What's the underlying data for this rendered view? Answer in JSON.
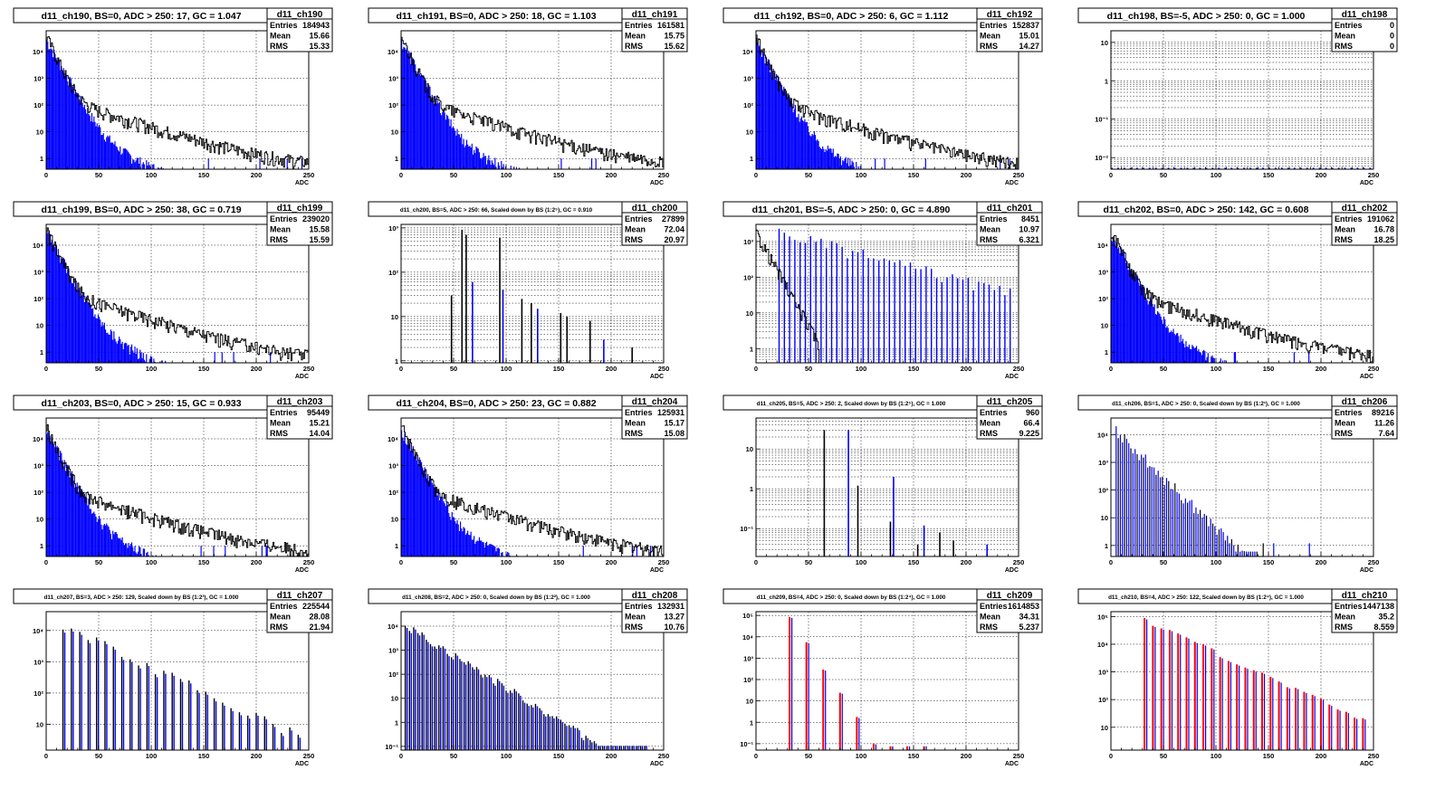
{
  "colors": {
    "blue": "#0000ff",
    "black": "#000000",
    "red": "#ff0000"
  },
  "chart_data": [
    {
      "type": "bar",
      "name": "d11_ch190",
      "title": "d11_ch190, BS=0, ADC > 250: 17, GC = 1.047",
      "stats": {
        "entries": "184943",
        "mean": "15.66",
        "rms": "15.33"
      },
      "xlabel": "ADC",
      "xlim": [
        0,
        250
      ],
      "ylim": [
        0.4,
        60000
      ],
      "log": true,
      "yticks": [
        {
          "v": 1,
          "label": "1"
        },
        {
          "v": 10,
          "label": "10"
        },
        {
          "v": 100,
          "label": "10²"
        },
        {
          "v": 1000,
          "label": "10³"
        },
        {
          "v": 10000,
          "label": "10⁴"
        }
      ],
      "series": [
        {
          "name": "blue",
          "color": "#0000ff",
          "kind": "fill",
          "profile": "smooth",
          "peak": 30000,
          "end": 150
        },
        {
          "name": "black",
          "color": "#000000",
          "kind": "line",
          "profile": "smooth",
          "peak": 40000,
          "end": 250
        }
      ]
    },
    {
      "type": "bar",
      "name": "d11_ch191",
      "title": "d11_ch191, BS=0, ADC > 250: 18, GC = 1.103",
      "stats": {
        "entries": "161581",
        "mean": "15.75",
        "rms": "15.62"
      },
      "xlabel": "ADC",
      "xlim": [
        0,
        250
      ],
      "ylim": [
        0.4,
        60000
      ],
      "log": true,
      "yticks": [
        {
          "v": 1,
          "label": "1"
        },
        {
          "v": 10,
          "label": "10"
        },
        {
          "v": 100,
          "label": "10²"
        },
        {
          "v": 1000,
          "label": "10³"
        },
        {
          "v": 10000,
          "label": "10⁴"
        }
      ],
      "series": [
        {
          "name": "blue",
          "color": "#0000ff",
          "kind": "fill",
          "profile": "smooth",
          "peak": 28000,
          "end": 150
        },
        {
          "name": "black",
          "color": "#000000",
          "kind": "line",
          "profile": "smooth",
          "peak": 38000,
          "end": 250
        }
      ]
    },
    {
      "type": "bar",
      "name": "d11_ch192",
      "title": "d11_ch192, BS=0, ADC > 250: 6, GC = 1.112",
      "stats": {
        "entries": "152837",
        "mean": "15.01",
        "rms": "14.27"
      },
      "xlabel": "ADC",
      "xlim": [
        0,
        250
      ],
      "ylim": [
        0.4,
        60000
      ],
      "log": true,
      "yticks": [
        {
          "v": 1,
          "label": "1"
        },
        {
          "v": 10,
          "label": "10"
        },
        {
          "v": 100,
          "label": "10²"
        },
        {
          "v": 1000,
          "label": "10³"
        },
        {
          "v": 10000,
          "label": "10⁴"
        }
      ],
      "series": [
        {
          "name": "blue",
          "color": "#0000ff",
          "kind": "fill",
          "profile": "smooth",
          "peak": 26000,
          "end": 100
        },
        {
          "name": "black",
          "color": "#000000",
          "kind": "line",
          "profile": "smooth",
          "peak": 36000,
          "end": 250
        }
      ]
    },
    {
      "type": "bar",
      "name": "d11_ch198",
      "title": "d11_ch198, BS=-5, ADC > 250: 0, GC = 1.000",
      "stats": {
        "entries": "0",
        "mean": "0",
        "rms": "0"
      },
      "xlabel": "ADC",
      "xlim": [
        0,
        250
      ],
      "ylim": [
        0.005,
        20
      ],
      "log": true,
      "yticks": [
        {
          "v": 0.01,
          "label": "10⁻²"
        },
        {
          "v": 0.1,
          "label": "10⁻¹"
        },
        {
          "v": 1,
          "label": "1"
        },
        {
          "v": 10,
          "label": "10"
        }
      ],
      "series": [
        {
          "name": "blue",
          "color": "#0000ff",
          "kind": "baseline"
        }
      ]
    },
    {
      "type": "bar",
      "name": "d11_ch199",
      "title": "d11_ch199, BS=0, ADC > 250: 38, GC = 0.719",
      "stats": {
        "entries": "239020",
        "mean": "15.58",
        "rms": "15.59"
      },
      "xlabel": "ADC",
      "xlim": [
        0,
        250
      ],
      "ylim": [
        0.4,
        60000
      ],
      "log": true,
      "yticks": [
        {
          "v": 1,
          "label": "1"
        },
        {
          "v": 10,
          "label": "10"
        },
        {
          "v": 100,
          "label": "10²"
        },
        {
          "v": 1000,
          "label": "10³"
        },
        {
          "v": 10000,
          "label": "10⁴"
        }
      ],
      "series": [
        {
          "name": "blue",
          "color": "#0000ff",
          "kind": "fill",
          "profile": "smooth",
          "peak": 35000,
          "end": 160
        },
        {
          "name": "black",
          "color": "#000000",
          "kind": "line",
          "profile": "smooth",
          "peak": 45000,
          "end": 250
        }
      ]
    },
    {
      "type": "bar",
      "name": "d11_ch200",
      "title": "d11_ch200, BS=5, ADC > 250: 66, Scaled down by BS (1:2⁵), GC = 0.910",
      "stats": {
        "entries": "27899",
        "mean": "72.04",
        "rms": "20.97"
      },
      "xlabel": "ADC",
      "xlim": [
        0,
        250
      ],
      "ylim": [
        0.9,
        1200
      ],
      "log": true,
      "yticks": [
        {
          "v": 1,
          "label": "1"
        },
        {
          "v": 10,
          "label": "10"
        },
        {
          "v": 100,
          "label": "10²"
        },
        {
          "v": 1000,
          "label": "10³"
        }
      ],
      "series": [
        {
          "name": "spikes",
          "color": "#000000",
          "kind": "spikes",
          "spikes": [
            [
              48,
              30,
              "#000000"
            ],
            [
              58,
              900,
              "#000000"
            ],
            [
              62,
              700,
              "#000000"
            ],
            [
              68,
              60,
              "#0000ff"
            ],
            [
              94,
              600,
              "#000000"
            ],
            [
              97,
              40,
              "#0000ff"
            ],
            [
              115,
              25,
              "#000000"
            ],
            [
              124,
              20,
              "#000000"
            ],
            [
              130,
              15,
              "#0000ff"
            ],
            [
              152,
              12,
              "#000000"
            ],
            [
              158,
              10,
              "#000000"
            ],
            [
              180,
              8,
              "#000000"
            ],
            [
              193,
              3,
              "#0000ff"
            ],
            [
              220,
              2,
              "#000000"
            ]
          ]
        }
      ]
    },
    {
      "type": "bar",
      "name": "d11_ch201",
      "title": "d11_ch201, BS=-5, ADC > 250: 0, GC = 4.890",
      "stats": {
        "entries": "8451",
        "mean": "10.97",
        "rms": "6.321"
      },
      "xlabel": "ADC",
      "xlim": [
        0,
        250
      ],
      "ylim": [
        0.4,
        3000
      ],
      "log": true,
      "yticks": [
        {
          "v": 1,
          "label": "1"
        },
        {
          "v": 10,
          "label": "10"
        },
        {
          "v": 100,
          "label": "10²"
        },
        {
          "v": 1000,
          "label": "10³"
        }
      ],
      "series": [
        {
          "name": "blue",
          "color": "#0000ff",
          "kind": "comb",
          "start": 22,
          "end": 245,
          "step": 5,
          "peak": 1800,
          "decay": 0.018
        },
        {
          "name": "black",
          "color": "#000000",
          "kind": "line",
          "profile": "fast",
          "peak": 1800,
          "end": 60
        }
      ]
    },
    {
      "type": "bar",
      "name": "d11_ch202",
      "title": "d11_ch202, BS=0, ADC > 250: 142, GC = 0.608",
      "stats": {
        "entries": "191062",
        "mean": "16.78",
        "rms": "18.25"
      },
      "xlabel": "ADC",
      "xlim": [
        0,
        250
      ],
      "ylim": [
        0.4,
        60000
      ],
      "log": true,
      "yticks": [
        {
          "v": 1,
          "label": "1"
        },
        {
          "v": 10,
          "label": "10"
        },
        {
          "v": 100,
          "label": "10²"
        },
        {
          "v": 1000,
          "label": "10³"
        },
        {
          "v": 10000,
          "label": "10⁴"
        }
      ],
      "series": [
        {
          "name": "blue",
          "color": "#0000ff",
          "kind": "fill",
          "profile": "smooth",
          "peak": 30000,
          "end": 110
        },
        {
          "name": "black",
          "color": "#000000",
          "kind": "line",
          "profile": "smooth",
          "peak": 42000,
          "end": 250
        }
      ]
    },
    {
      "type": "bar",
      "name": "d11_ch203",
      "title": "d11_ch203, BS=0, ADC > 250: 15, GC = 0.933",
      "stats": {
        "entries": "95449",
        "mean": "15.21",
        "rms": "14.04"
      },
      "xlabel": "ADC",
      "xlim": [
        0,
        250
      ],
      "ylim": [
        0.4,
        60000
      ],
      "log": true,
      "yticks": [
        {
          "v": 1,
          "label": "1"
        },
        {
          "v": 10,
          "label": "10"
        },
        {
          "v": 100,
          "label": "10²"
        },
        {
          "v": 1000,
          "label": "10³"
        },
        {
          "v": 10000,
          "label": "10⁴"
        }
      ],
      "series": [
        {
          "name": "blue",
          "color": "#0000ff",
          "kind": "fill",
          "profile": "smooth",
          "peak": 22000,
          "end": 130
        },
        {
          "name": "black",
          "color": "#000000",
          "kind": "line",
          "profile": "smooth",
          "peak": 30000,
          "end": 250
        }
      ]
    },
    {
      "type": "bar",
      "name": "d11_ch204",
      "title": "d11_ch204, BS=0, ADC > 250: 23, GC = 0.882",
      "stats": {
        "entries": "125931",
        "mean": "15.17",
        "rms": "15.08"
      },
      "xlabel": "ADC",
      "xlim": [
        0,
        250
      ],
      "ylim": [
        0.4,
        60000
      ],
      "log": true,
      "yticks": [
        {
          "v": 1,
          "label": "1"
        },
        {
          "v": 10,
          "label": "10"
        },
        {
          "v": 100,
          "label": "10²"
        },
        {
          "v": 1000,
          "label": "10³"
        },
        {
          "v": 10000,
          "label": "10⁴"
        }
      ],
      "series": [
        {
          "name": "blue",
          "color": "#0000ff",
          "kind": "fill",
          "profile": "smooth",
          "peak": 24000,
          "end": 130
        },
        {
          "name": "black",
          "color": "#000000",
          "kind": "line",
          "profile": "smooth",
          "peak": 32000,
          "end": 250
        }
      ]
    },
    {
      "type": "bar",
      "name": "d11_ch205",
      "title": "d11_ch205, BS=5, ADC > 250: 2, Scaled down by BS (1:2⁵), GC = 1.000",
      "stats": {
        "entries": "960",
        "mean": "66.4",
        "rms": "9.225"
      },
      "xlabel": "ADC",
      "xlim": [
        0,
        250
      ],
      "ylim": [
        0.02,
        60
      ],
      "log": true,
      "yticks": [
        {
          "v": 0.1,
          "label": "10⁻¹"
        },
        {
          "v": 1,
          "label": "1"
        },
        {
          "v": 10,
          "label": "10"
        }
      ],
      "series": [
        {
          "name": "spikes",
          "color": "#000000",
          "kind": "spikes",
          "spikes": [
            [
              65,
              30,
              "#000000"
            ],
            [
              88,
              30,
              "#0000ff"
            ],
            [
              97,
              1.2,
              "#000000"
            ],
            [
              128,
              0.15,
              "#000000"
            ],
            [
              131,
              2,
              "#0000ff"
            ],
            [
              154,
              0.04,
              "#000000"
            ],
            [
              160,
              0.12,
              "#0000ff"
            ],
            [
              175,
              0.08,
              "#000000"
            ],
            [
              188,
              0.05,
              "#000000"
            ],
            [
              220,
              0.04,
              "#0000ff"
            ]
          ]
        }
      ]
    },
    {
      "type": "bar",
      "name": "d11_ch206",
      "title": "d11_ch206, BS=1, ADC > 250: 0, Scaled down by BS (1:2¹), GC = 1.000",
      "stats": {
        "entries": "89216",
        "mean": "11.26",
        "rms": "7.64"
      },
      "xlabel": "ADC",
      "xlim": [
        0,
        250
      ],
      "ylim": [
        0.4,
        40000
      ],
      "log": true,
      "yticks": [
        {
          "v": 1,
          "label": "1"
        },
        {
          "v": 10,
          "label": "10"
        },
        {
          "v": 100,
          "label": "10²"
        },
        {
          "v": 1000,
          "label": "10³"
        },
        {
          "v": 10000,
          "label": "10⁴"
        }
      ],
      "series": [
        {
          "name": "blue",
          "color": "#0000ff",
          "kind": "comb2",
          "start": 5,
          "end": 245,
          "step": 2,
          "peak": 15000,
          "decay": 0.085,
          "cut": 140
        }
      ]
    },
    {
      "type": "bar",
      "name": "d11_ch207",
      "title": "d11_ch207, BS=3, ADC > 250: 129, Scaled down by BS (1:2³), GC = 1.000",
      "stats": {
        "entries": "225544",
        "mean": "28.08",
        "rms": "21.94"
      },
      "xlabel": "ADC",
      "xlim": [
        0,
        250
      ],
      "ylim": [
        1.5,
        40000
      ],
      "log": true,
      "yticks": [
        {
          "v": 10,
          "label": "10"
        },
        {
          "v": 100,
          "label": "10²"
        },
        {
          "v": 1000,
          "label": "10³"
        },
        {
          "v": 10000,
          "label": "10⁴"
        }
      ],
      "series": [
        {
          "name": "comb",
          "color": "#000000",
          "kind": "comb3",
          "start": 16,
          "end": 245,
          "step": 8,
          "peak": 15000,
          "decay": 0.036
        }
      ]
    },
    {
      "type": "bar",
      "name": "d11_ch208",
      "title": "d11_ch208, BS=2, ADC > 250: 0, Scaled down by BS (1:2²), GC = 1.000",
      "stats": {
        "entries": "132931",
        "mean": "13.27",
        "rms": "10.76"
      },
      "xlabel": "ADC",
      "xlim": [
        0,
        250
      ],
      "ylim": [
        0.07,
        40000
      ],
      "log": true,
      "yticks": [
        {
          "v": 0.1,
          "label": "10⁻¹"
        },
        {
          "v": 1,
          "label": "1"
        },
        {
          "v": 10,
          "label": "10"
        },
        {
          "v": 100,
          "label": "10²"
        },
        {
          "v": 1000,
          "label": "10³"
        },
        {
          "v": 10000,
          "label": "10⁴"
        }
      ],
      "series": [
        {
          "name": "comb",
          "color": "#000000",
          "kind": "comb3",
          "start": 4,
          "end": 235,
          "step": 4,
          "peak": 12000,
          "decay": 0.062
        }
      ]
    },
    {
      "type": "bar",
      "name": "d11_ch209",
      "title": "d11_ch209, BS=4, ADC > 250: 0, Scaled down by BS (1:2⁴), GC = 1.000",
      "stats": {
        "entries": "1614853",
        "mean": "34.31",
        "rms": "5.237"
      },
      "xlabel": "ADC",
      "xlim": [
        0,
        250
      ],
      "ylim": [
        0.05,
        150000
      ],
      "log": true,
      "yticks": [
        {
          "v": 0.1,
          "label": "10⁻¹"
        },
        {
          "v": 1,
          "label": "1"
        },
        {
          "v": 10,
          "label": "10"
        },
        {
          "v": 100,
          "label": "10²"
        },
        {
          "v": 1000,
          "label": "10³"
        },
        {
          "v": 10000,
          "label": "10⁴"
        },
        {
          "v": 100000,
          "label": "10⁵"
        }
      ],
      "series": [
        {
          "name": "rb",
          "color": "#ff0000",
          "kind": "redblue",
          "start": 32,
          "end": 160,
          "step": 16,
          "peak": 90000,
          "decay": 0.085
        }
      ]
    },
    {
      "type": "bar",
      "name": "d11_ch210",
      "title": "d11_ch210, BS=4, ADC > 250: 122, Scaled down by BS (1:2⁴), GC = 1.000",
      "stats": {
        "entries": "1447138",
        "mean": "35.2",
        "rms": "8.559"
      },
      "xlabel": "ADC",
      "xlim": [
        0,
        250
      ],
      "ylim": [
        1.5,
        150000
      ],
      "log": true,
      "yticks": [
        {
          "v": 10,
          "label": "10"
        },
        {
          "v": 100,
          "label": "10²"
        },
        {
          "v": 1000,
          "label": "10³"
        },
        {
          "v": 10000,
          "label": "10⁴"
        },
        {
          "v": 100000,
          "label": "10⁵"
        }
      ],
      "series": [
        {
          "name": "rb",
          "color": "#ff0000",
          "kind": "redblue",
          "start": 32,
          "end": 245,
          "step": 8,
          "peak": 85000,
          "decay": 0.04
        }
      ]
    }
  ]
}
